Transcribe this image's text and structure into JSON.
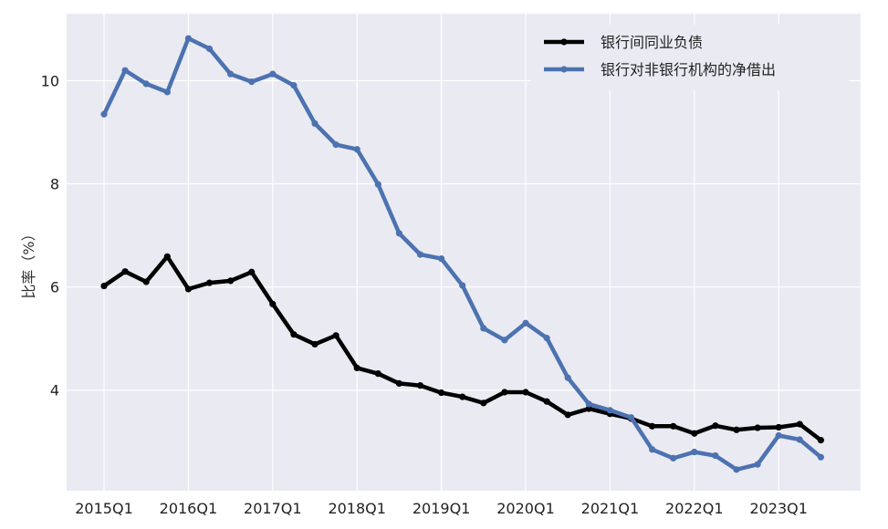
{
  "chart_data": {
    "type": "line",
    "title": "",
    "xlabel": "",
    "ylabel": "比率（%）",
    "x": [
      "2015Q1",
      "2015Q2",
      "2015Q3",
      "2015Q4",
      "2016Q1",
      "2016Q2",
      "2016Q3",
      "2016Q4",
      "2017Q1",
      "2017Q2",
      "2017Q3",
      "2017Q4",
      "2018Q1",
      "2018Q2",
      "2018Q3",
      "2018Q4",
      "2019Q1",
      "2019Q2",
      "2019Q3",
      "2019Q4",
      "2020Q1",
      "2020Q2",
      "2020Q3",
      "2020Q4",
      "2021Q1",
      "2021Q2",
      "2021Q3",
      "2021Q4",
      "2022Q1",
      "2022Q2",
      "2022Q3",
      "2022Q4",
      "2023Q1",
      "2023Q2",
      "2023Q3"
    ],
    "xticks": [
      "2015Q1",
      "2016Q1",
      "2017Q1",
      "2018Q1",
      "2019Q1",
      "2020Q1",
      "2021Q1",
      "2022Q1",
      "2023Q1"
    ],
    "yticks": [
      4,
      6,
      8,
      10
    ],
    "ylim": [
      2.05,
      11.3
    ],
    "grid": true,
    "legend_position": "top-right",
    "series": [
      {
        "name": "银行间同业负债",
        "color": "#000000",
        "values": [
          6.02,
          6.3,
          6.1,
          6.59,
          5.96,
          6.08,
          6.12,
          6.29,
          5.67,
          5.08,
          4.89,
          5.06,
          4.43,
          4.32,
          4.13,
          4.09,
          3.95,
          3.87,
          3.75,
          3.96,
          3.96,
          3.78,
          3.52,
          3.64,
          3.54,
          3.45,
          3.3,
          3.3,
          3.16,
          3.31,
          3.23,
          3.27,
          3.28,
          3.34,
          3.03
        ]
      },
      {
        "name": "银行对非银行机构的净借出",
        "color": "#4c72b0",
        "values": [
          9.35,
          10.2,
          9.94,
          9.78,
          10.82,
          10.62,
          10.13,
          9.98,
          10.13,
          9.91,
          9.17,
          8.76,
          8.67,
          7.99,
          7.04,
          6.63,
          6.55,
          6.03,
          5.2,
          4.97,
          5.3,
          5.01,
          4.24,
          3.73,
          3.61,
          3.47,
          2.85,
          2.68,
          2.8,
          2.73,
          2.46,
          2.56,
          3.12,
          3.04,
          2.7
        ]
      }
    ]
  }
}
